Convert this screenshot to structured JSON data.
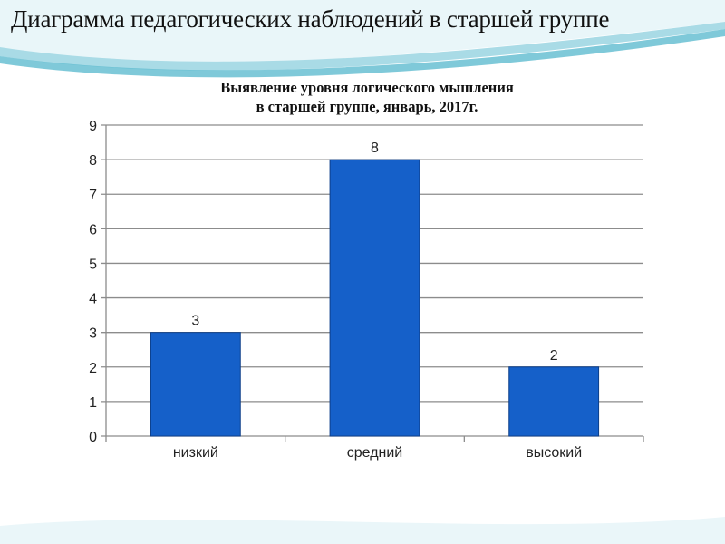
{
  "slide": {
    "title": "Диаграмма педагогических наблюдений в старшей группе"
  },
  "colors": {
    "bar": "#1560c9",
    "bar_edge": "#0d3f8a",
    "grid": "#8c8c8c",
    "wave_light": "#d8eef3",
    "wave_mid": "#9fd4e0",
    "wave_dark": "#4fb3c8"
  },
  "chart_data": {
    "type": "bar",
    "title_lines": [
      "Выявление уровня логического мышления",
      "в старшей группе, январь, 2017г."
    ],
    "categories": [
      "низкий",
      "средний",
      "высокий"
    ],
    "values": [
      3,
      8,
      2
    ],
    "data_labels": [
      "3",
      "8",
      "2"
    ],
    "ylim": [
      0,
      9
    ],
    "yticks": [
      0,
      1,
      2,
      3,
      4,
      5,
      6,
      7,
      8,
      9
    ],
    "grid": true,
    "legend": "none"
  }
}
